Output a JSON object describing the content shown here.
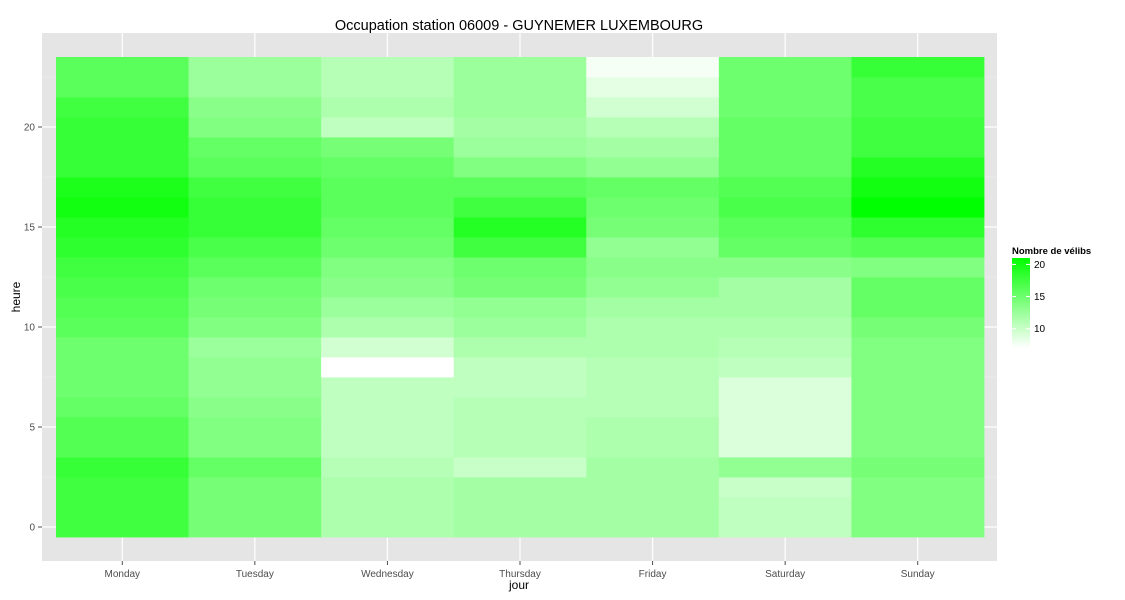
{
  "chart_data": {
    "type": "heatmap",
    "title": "Occupation station 06009 - GUYNEMER LUXEMBOURG",
    "xlabel": "jour",
    "ylabel": "heure",
    "categories": [
      "Monday",
      "Tuesday",
      "Wednesday",
      "Thursday",
      "Friday",
      "Saturday",
      "Sunday"
    ],
    "y_values": [
      0,
      1,
      2,
      3,
      4,
      5,
      6,
      7,
      8,
      9,
      10,
      11,
      12,
      13,
      14,
      15,
      16,
      17,
      18,
      19,
      20,
      21,
      22,
      23
    ],
    "y_ticks": [
      0,
      5,
      10,
      15,
      20
    ],
    "ylim": [
      -0.5,
      23.5
    ],
    "grid": true,
    "legend": {
      "title": "Nombre de vélibs",
      "ticks": [
        10,
        15,
        20
      ],
      "min": 7,
      "max": 21,
      "low_color": "#ffffff",
      "high_color": "#00ff00",
      "placement": "right"
    },
    "values": [
      [
        17.5,
        14.5,
        11.5,
        12.0,
        12.0,
        10.5,
        14.0
      ],
      [
        17.5,
        14.5,
        11.5,
        12.0,
        12.0,
        10.5,
        14.0
      ],
      [
        17.5,
        14.5,
        11.5,
        12.0,
        12.0,
        10.0,
        14.0
      ],
      [
        18.0,
        15.5,
        11.0,
        10.0,
        12.0,
        13.0,
        14.5
      ],
      [
        16.5,
        14.0,
        10.5,
        11.0,
        11.5,
        9.0,
        14.0
      ],
      [
        16.5,
        14.0,
        10.5,
        11.0,
        11.5,
        9.0,
        14.0
      ],
      [
        15.5,
        13.5,
        10.5,
        11.0,
        11.0,
        9.0,
        14.0
      ],
      [
        15.0,
        13.0,
        10.5,
        10.5,
        11.0,
        9.0,
        14.0
      ],
      [
        15.0,
        13.0,
        7.0,
        10.5,
        11.0,
        10.5,
        14.0
      ],
      [
        15.0,
        12.5,
        9.5,
        11.5,
        11.5,
        11.0,
        14.0
      ],
      [
        16.0,
        14.0,
        11.5,
        12.5,
        11.5,
        11.5,
        14.5
      ],
      [
        16.5,
        14.5,
        12.5,
        13.0,
        12.0,
        12.0,
        15.5
      ],
      [
        17.0,
        15.0,
        13.5,
        14.5,
        13.0,
        12.0,
        15.5
      ],
      [
        17.5,
        16.0,
        14.0,
        15.0,
        13.5,
        13.5,
        14.0
      ],
      [
        18.5,
        17.0,
        15.0,
        17.5,
        13.0,
        15.5,
        16.5
      ],
      [
        19.0,
        18.0,
        15.5,
        19.0,
        14.5,
        16.0,
        18.5
      ],
      [
        20.0,
        18.0,
        16.0,
        17.5,
        15.0,
        17.0,
        21.0
      ],
      [
        19.5,
        17.5,
        16.0,
        16.0,
        15.5,
        16.5,
        20.0
      ],
      [
        18.0,
        16.0,
        15.5,
        14.0,
        13.0,
        15.5,
        19.0
      ],
      [
        18.0,
        15.5,
        14.5,
        12.5,
        12.0,
        15.5,
        17.5
      ],
      [
        18.0,
        14.0,
        10.5,
        12.0,
        11.0,
        15.5,
        17.5
      ],
      [
        17.5,
        13.5,
        11.5,
        12.5,
        9.5,
        15.0,
        17.0
      ],
      [
        16.0,
        12.5,
        11.0,
        12.5,
        8.5,
        15.0,
        17.0
      ],
      [
        16.0,
        12.5,
        11.0,
        12.5,
        7.5,
        15.0,
        18.0
      ]
    ]
  }
}
